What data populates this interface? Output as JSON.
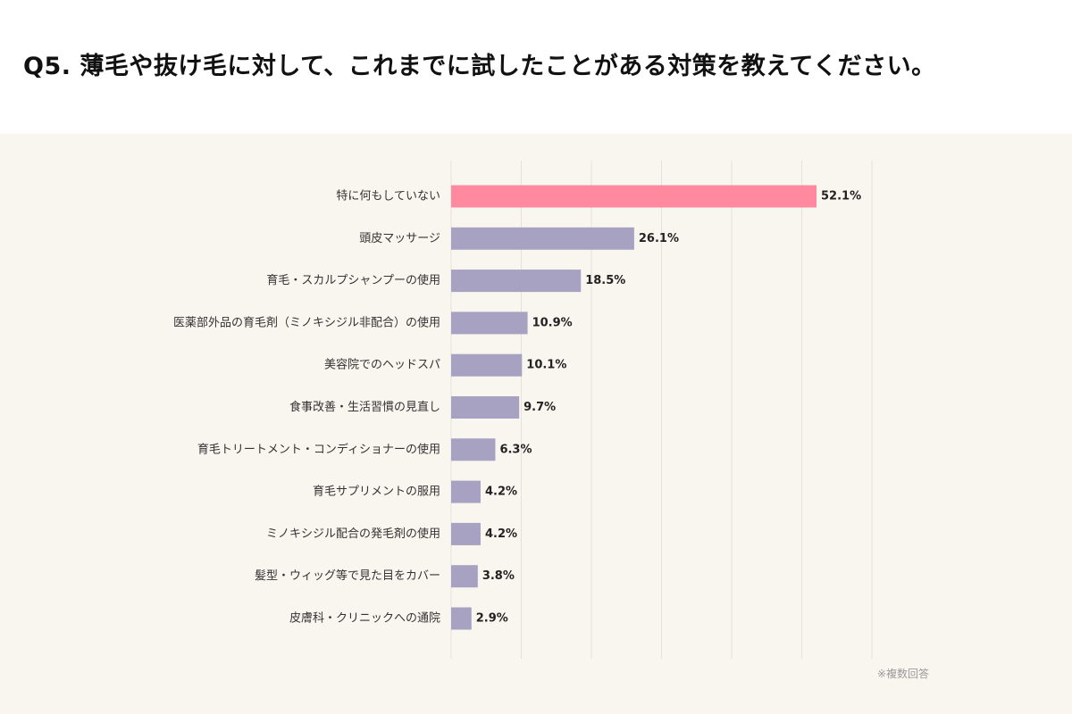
{
  "header": {
    "title": "Q5. 薄毛や抜け毛に対して、これまでに試したことがある対策を教えてください。"
  },
  "footnote": "※複数回答",
  "colors": {
    "highlight_bar": "#ff8aa0",
    "default_bar": "#a7a1c2",
    "panel_background": "#f9f5ef",
    "gridline": "#e6e1da"
  },
  "chart_data": {
    "type": "bar",
    "orientation": "horizontal",
    "categories": [
      "特に何もしていない",
      "頭皮マッサージ",
      "育毛・スカルプシャンプーの使用",
      "医薬部外品の育毛剤（ミノキシジル非配合）の使用",
      "美容院でのヘッドスパ",
      "食事改善・生活習慣の見直し",
      "育毛トリートメント・コンディショナーの使用",
      "育毛サプリメントの服用",
      "ミノキシジル配合の発毛剤の使用",
      "髪型・ウィッグ等で見た目をカバー",
      "皮膚科・クリニックへの通院"
    ],
    "values": [
      52.1,
      26.1,
      18.5,
      10.9,
      10.1,
      9.7,
      6.3,
      4.2,
      4.2,
      3.8,
      2.9
    ],
    "value_labels": [
      "52.1%",
      "26.1%",
      "18.5%",
      "10.9%",
      "10.1%",
      "9.7%",
      "6.3%",
      "4.2%",
      "4.2%",
      "3.8%",
      "2.9%"
    ],
    "highlight_index": 0,
    "xlim": [
      0,
      60
    ],
    "grid": true,
    "legend": false
  }
}
